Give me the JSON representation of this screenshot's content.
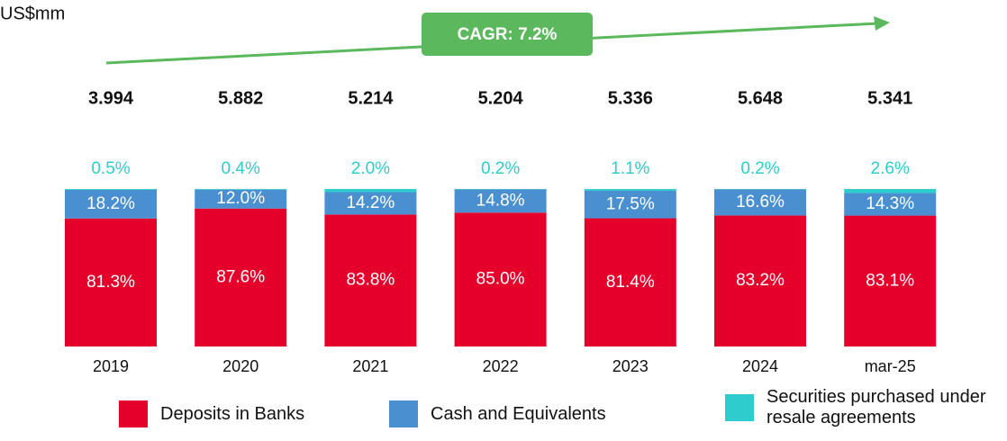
{
  "chart_data": {
    "type": "stacked_bar",
    "unit_label": "US$mm",
    "annotation": "CAGR: 7.2%",
    "categories": [
      "2019",
      "2020",
      "2021",
      "2022",
      "2023",
      "2024",
      "mar-25"
    ],
    "totals": {
      "values": [
        3994,
        5882,
        5214,
        5204,
        5336,
        5648,
        5341
      ],
      "value_labels": [
        "3.994",
        "5.882",
        "5.214",
        "5.204",
        "5.336",
        "5.648",
        "5.341"
      ]
    },
    "series": [
      {
        "name": "Deposits in Banks",
        "color": "#e4002b",
        "values": [
          81.3,
          87.6,
          83.8,
          85.0,
          81.4,
          83.2,
          83.1
        ],
        "value_labels": [
          "81.3%",
          "87.6%",
          "83.8%",
          "85.0%",
          "81.4%",
          "83.2%",
          "83.1%"
        ]
      },
      {
        "name": "Cash and Equivalents",
        "color": "#4a90d0",
        "values": [
          18.2,
          12.0,
          14.2,
          14.8,
          17.5,
          16.6,
          14.3
        ],
        "value_labels": [
          "18.2%",
          "12.0%",
          "14.2%",
          "14.8%",
          "17.5%",
          "16.6%",
          "14.3%"
        ]
      },
      {
        "name": "Securities purchased under resale agreements",
        "color": "#2ecccc",
        "values": [
          0.5,
          0.4,
          2.0,
          0.2,
          1.1,
          0.2,
          2.6
        ],
        "value_labels": [
          "0.5%",
          "0.4%",
          "2.0%",
          "0.2%",
          "1.1%",
          "0.2%",
          "2.6%"
        ]
      }
    ],
    "ylim": [
      0,
      100
    ]
  }
}
